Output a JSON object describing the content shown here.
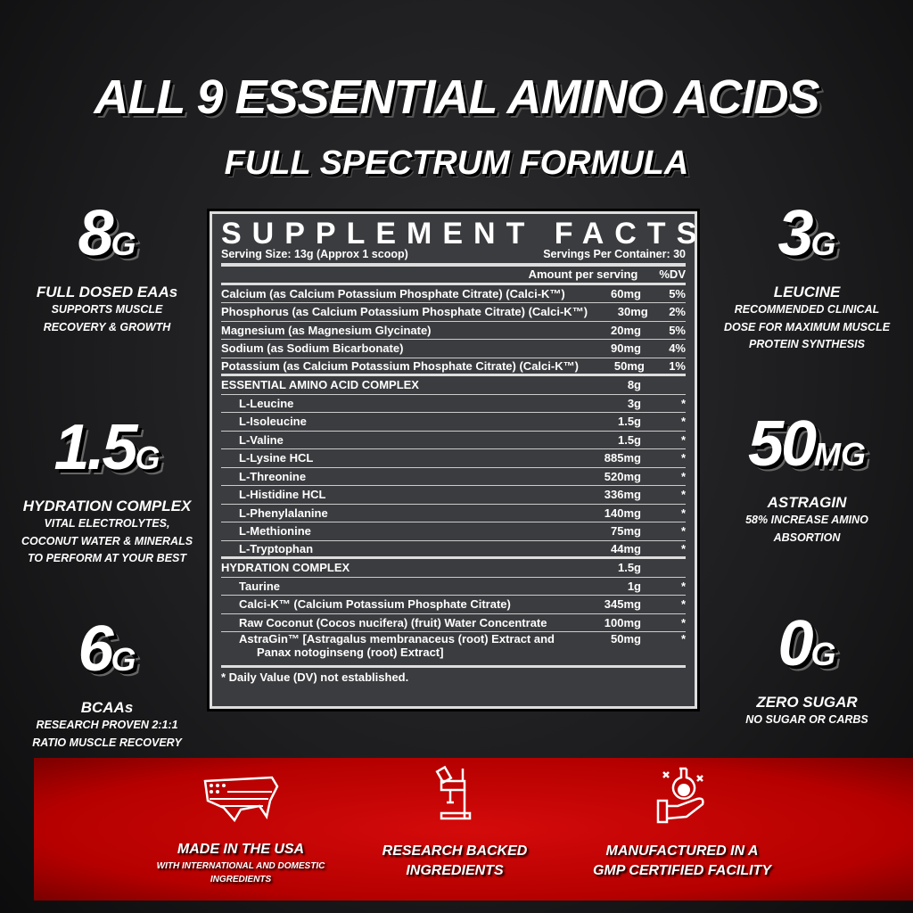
{
  "headline": "ALL 9 ESSENTIAL AMINO ACIDS",
  "subheadline": "FULL SPECTRUM FORMULA",
  "left_stats": [
    {
      "value": "8",
      "unit": "G",
      "title": "FULL DOSED EAAs",
      "lines": [
        "SUPPORTS MUSCLE",
        "RECOVERY & GROWTH"
      ]
    },
    {
      "value": "1.5",
      "unit": "G",
      "title": "HYDRATION COMPLEX",
      "lines": [
        "VITAL ELECTROLYTES,",
        "COCONUT WATER & MINERALS",
        "TO PERFORM AT YOUR BEST"
      ]
    },
    {
      "value": "6",
      "unit": "G",
      "title": "BCAAs",
      "lines": [
        "RESEARCH PROVEN 2:1:1",
        "RATIO MUSCLE RECOVERY"
      ]
    }
  ],
  "right_stats": [
    {
      "value": "3",
      "unit": "G",
      "title": "LEUCINE",
      "lines": [
        "RECOMMENDED CLINICAL",
        "DOSE FOR MAXIMUM MUSCLE",
        "PROTEIN SYNTHESIS"
      ]
    },
    {
      "value": "50",
      "unit": "MG",
      "title": "ASTRAGIN",
      "lines": [
        "58% INCREASE AMINO",
        "ABSORTION"
      ]
    },
    {
      "value": "0",
      "unit": "G",
      "title": "ZERO SUGAR",
      "lines": [
        "NO SUGAR OR CARBS"
      ]
    }
  ],
  "facts": {
    "title": "SUPPLEMENT FACTS",
    "serving_size": "Serving Size: 13g (Approx 1 scoop)",
    "servings_per": "Servings Per Container: 30",
    "col_amount": "Amount per serving",
    "col_dv": "%DV",
    "rows": [
      {
        "name": "Calcium (as Calcium Potassium Phosphate Citrate) (Calci-K™)",
        "amount": "60mg",
        "dv": "5%"
      },
      {
        "name": "Phosphorus (as Calcium Potassium Phosphate Citrate) (Calci-K™)",
        "amount": "30mg",
        "dv": "2%"
      },
      {
        "name": "Magnesium (as Magnesium Glycinate)",
        "amount": "20mg",
        "dv": "5%"
      },
      {
        "name": "Sodium (as Sodium Bicarbonate)",
        "amount": "90mg",
        "dv": "4%"
      },
      {
        "name": "Potassium (as Calcium Potassium Phosphate Citrate) (Calci-K™)",
        "amount": "50mg",
        "dv": "1%"
      },
      {
        "name": "ESSENTIAL AMINO ACID COMPLEX",
        "amount": "8g",
        "dv": ""
      },
      {
        "name": "L-Leucine",
        "amount": "3g",
        "dv": "*"
      },
      {
        "name": "L-Isoleucine",
        "amount": "1.5g",
        "dv": "*"
      },
      {
        "name": "L-Valine",
        "amount": "1.5g",
        "dv": "*"
      },
      {
        "name": "L-Lysine HCL",
        "amount": "885mg",
        "dv": "*"
      },
      {
        "name": "L-Threonine",
        "amount": "520mg",
        "dv": "*"
      },
      {
        "name": "L-Histidine HCL",
        "amount": "336mg",
        "dv": "*"
      },
      {
        "name": "L-Phenylalanine",
        "amount": "140mg",
        "dv": "*"
      },
      {
        "name": "L-Methionine",
        "amount": "75mg",
        "dv": "*"
      },
      {
        "name": "L-Tryptophan",
        "amount": "44mg",
        "dv": "*"
      },
      {
        "name": "HYDRATION COMPLEX",
        "amount": "1.5g",
        "dv": ""
      },
      {
        "name": "Taurine",
        "amount": "1g",
        "dv": "*"
      },
      {
        "name": "Calci-K™ (Calcium Potassium Phosphate Citrate)",
        "amount": "345mg",
        "dv": "*"
      },
      {
        "name": "Raw Coconut (Cocos nucifera) (fruit) Water Concentrate",
        "amount": "100mg",
        "dv": "*"
      },
      {
        "name": "AstraGin™ [Astragalus membranaceus (root) Extract and",
        "name2": "Panax notoginseng (root) Extract]",
        "amount": "50mg",
        "dv": "*"
      }
    ],
    "footnote": "* Daily Value (DV) not established."
  },
  "features": [
    {
      "icon": "usa-flag-map-icon",
      "title": "MADE IN THE USA",
      "sub": [
        "WITH INTERNATIONAL AND DOMESTIC",
        "INGREDIENTS"
      ]
    },
    {
      "icon": "microscope-icon",
      "title": "RESEARCH BACKED",
      "title2": "INGREDIENTS"
    },
    {
      "icon": "flask-in-hand-icon",
      "title": "MANUFACTURED IN A",
      "title2": "GMP CERTIFIED FACILITY"
    }
  ],
  "colors": {
    "accent_red": "#d40a0a",
    "panel": "#3b3c3f"
  }
}
